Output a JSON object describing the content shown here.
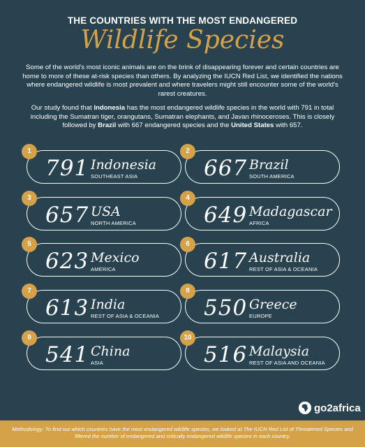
{
  "header": {
    "title_top": "THE COUNTRIES WITH THE MOST ENDANGERED",
    "title_main": "Wildlife Species"
  },
  "intro": {
    "paragraph1": "Some of the world's most iconic animals are on the brink of disappearing forever and certain countries are home to more of these at-risk species than others. By analyzing the IUCN Red List, we identified the nations where endangered wildlife is most prevalent and where travelers might still encounter some of the world's rarest creatures.",
    "p2_a": "Our study found that ",
    "p2_b": "Indonesia",
    "p2_c": " has the most endangered wildlife species in the world with 791 in total including the Sumatran tiger, orangutans, Sumatran elephants, and Javan rhinoceroses. This is closely followed by ",
    "p2_d": "Brazil",
    "p2_e": " with 667 endangered species and the ",
    "p2_f": "United States",
    "p2_g": " with 657."
  },
  "rankings": [
    {
      "rank": "1",
      "count": "791",
      "country": "Indonesia",
      "region": "SOUTHEAST ASIA"
    },
    {
      "rank": "2",
      "count": "667",
      "country": "Brazil",
      "region": "SOUTH AMERICA"
    },
    {
      "rank": "3",
      "count": "657",
      "country": "USA",
      "region": "NORTH AMERICA"
    },
    {
      "rank": "4",
      "count": "649",
      "country": "Madagascar",
      "region": "AFRICA"
    },
    {
      "rank": "5",
      "count": "623",
      "country": "Mexico",
      "region": "AMERICA"
    },
    {
      "rank": "6",
      "count": "617",
      "country": "Australia",
      "region": "REST OF ASIA & OCEANIA"
    },
    {
      "rank": "7",
      "count": "613",
      "country": "India",
      "region": "REST OF ASIA & OCEANIA"
    },
    {
      "rank": "8",
      "count": "550",
      "country": "Greece",
      "region": "EUROPE"
    },
    {
      "rank": "9",
      "count": "541",
      "country": "China",
      "region": "ASIA"
    },
    {
      "rank": "10",
      "count": "516",
      "country": "Malaysia",
      "region": "REST OF ASIA AND OCEANIA"
    }
  ],
  "logo": {
    "text": "go2africa",
    "icon": "africa-continent-icon"
  },
  "footer": {
    "methodology": "Methodology: To find out which countries have the most endangered wildlife species, we looked at The IUCN Red List of Threatened Species and filtered the number of endangered and critically endangered wildlife species in each country."
  },
  "colors": {
    "background": "#28434f",
    "accent": "#d5a24a",
    "text": "#ffffff"
  }
}
